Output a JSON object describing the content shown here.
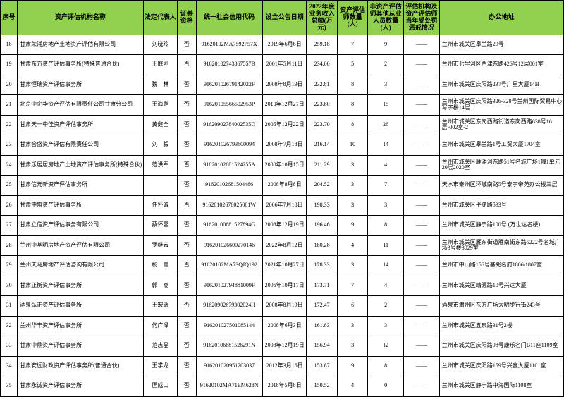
{
  "headers": [
    "序号",
    "资产评估机构名称",
    "法定代表人",
    "证券资格",
    "统一社会信用代码",
    "设立公告日期",
    "2022年度业务收入总额(万元)",
    "资产评估师数量(人)",
    "非资产评估师其他从业人员数量(人)",
    "评估机构及资产评估师当年受处罚惩戒情况",
    "办公地址"
  ],
  "rows": [
    {
      "seq": "18",
      "name": "甘肃荣浦房地产土地资产评估有限公司",
      "rep": "刘晓玲",
      "sec": "否",
      "code": "91620102MA7592P57X",
      "date": "2019年6月6日",
      "rev": "259.18",
      "cpa": "7",
      "other": "9",
      "pen": "——",
      "addr": "兰州市城关区皋兰路29号"
    },
    {
      "seq": "19",
      "name": "甘肃东方资产评估事务所(特殊普通合伙)",
      "rep": "王庭刚",
      "sec": "否",
      "code": "91620102743867557B",
      "date": "2001年5月11日",
      "rev": "234.00",
      "cpa": "5",
      "other": "2",
      "pen": "——",
      "addr": "兰州市七里河区西津东路426号12层001室"
    },
    {
      "seq": "20",
      "name": "甘肃恒瑞资产评估事务所",
      "rep": "魏　林",
      "sec": "否",
      "code": "91620102679142022F",
      "date": "2008年8月19日",
      "rev": "232.81",
      "cpa": "8",
      "other": "3",
      "pen": "——",
      "addr": "兰州市城关区庆阳路237号广星大厦14H"
    },
    {
      "seq": "21",
      "name": "北京中企华资产评估有限责任公司甘肃分公司",
      "rep": "王海鹏",
      "sec": "否",
      "code": "91620105566502953P",
      "date": "2010年12月27日",
      "rev": "223.80",
      "cpa": "8",
      "other": "15",
      "pen": "——",
      "addr": "兰州市城关区庆阳路326-328号兰州国际贸易中心写字楼14层"
    },
    {
      "seq": "22",
      "name": "甘肃天一中佳资产评估事务所",
      "rep": "黄健全",
      "sec": "否",
      "code": "91620902784002535D",
      "date": "2005年12月22日",
      "rev": "223.70",
      "cpa": "8",
      "other": "26",
      "pen": "——",
      "addr": "兰州市城关区东岗西路街道东岗西路638号16层-002室-2"
    },
    {
      "seq": "23",
      "name": "甘肃合盛资产评估有限责任公司",
      "rep": "刘　毅",
      "sec": "否",
      "code": "916201026793600094",
      "date": "2008年7月18日",
      "rev": "216.14",
      "cpa": "10",
      "other": "14",
      "pen": "——",
      "addr": "兰州市城关区皋兰路1号工贸大厦1704室"
    },
    {
      "seq": "24",
      "name": "甘肃乐居居房地产土地资产评估事务所(特殊合伙)",
      "rep": "范洪军",
      "sec": "否",
      "code": "91620102681524255A",
      "date": "2008年10月15日",
      "rev": "211.29",
      "cpa": "3",
      "other": "4",
      "pen": "——",
      "addr": "兰州市城关区雁滩河东路51号名城广场1幢1单元20层2020室"
    },
    {
      "seq": "25",
      "name": "甘肃信元新资产评估事务所",
      "rep": "",
      "sec": "否",
      "code": "91620102681504486",
      "date": "2008年8月8日",
      "rev": "204.52",
      "cpa": "3",
      "other": "7",
      "pen": "——",
      "addr": "天水市秦州区环城南路5号泰宇帝苑办公楼三层"
    },
    {
      "seq": "26",
      "name": "甘肃中盛资产评估事务所",
      "rep": "任怀诚",
      "sec": "否",
      "code": "91620102678025001W",
      "date": "2006年7月18日",
      "rev": "198.33",
      "cpa": "3",
      "other": "3",
      "pen": "——",
      "addr": "兰州市城关区平凉路533号"
    },
    {
      "seq": "27",
      "name": "甘肃立信资产评估事务有限公司",
      "rep": "蔡怀嘉",
      "sec": "否",
      "code": "91620100681527894G",
      "date": "2008年12月19日",
      "rev": "196.46",
      "cpa": "9",
      "other": "8",
      "pen": "——",
      "addr": "兰州市城关区静宁路100号 (万世达名楼)"
    },
    {
      "seq": "28",
      "name": "兰州中基明房地产资产评估有限公司",
      "rep": "罗继云",
      "sec": "否",
      "code": "916201026600270146",
      "date": "2022年8月12日",
      "rev": "180.28",
      "cpa": "4",
      "other": "11",
      "pen": "——",
      "addr": "兰州市城关区雁东街道雁南街东路5222号名城广场3号楼3029室"
    },
    {
      "seq": "29",
      "name": "兰州天马房地产评估咨询有限公司",
      "rep": "杨　嵩",
      "sec": "否",
      "code": "91620102MA73QJQ192",
      "date": "2021年10月27日",
      "rev": "178.33",
      "cpa": "3",
      "other": "14",
      "pen": "——",
      "addr": "兰州市中山路156号基兆名府1806/1807室"
    },
    {
      "seq": "30",
      "name": "甘肃正衡资产评估事务所",
      "rep": "郭　嵩",
      "sec": "否",
      "code": "91620102794881009F",
      "date": "2006年10月17日",
      "rev": "173.71",
      "cpa": "7",
      "other": "4",
      "pen": "——",
      "addr": "兰州市城关区靖源路10号兴达大厦"
    },
    {
      "seq": "31",
      "name": "酒泉弘正资产评估事务所",
      "rep": "王宏瑞",
      "sec": "否",
      "code": "91620902679302024H",
      "date": "2008年8月19日",
      "rev": "172.47",
      "cpa": "6",
      "other": "2",
      "pen": "——",
      "addr": "酒泉市肃州区东方广场大明步行街243号"
    },
    {
      "seq": "32",
      "name": "兰州华丰资产评估事务所",
      "rep": "何广泽",
      "sec": "否",
      "code": "916201027501085144",
      "date": "2008年6月3日",
      "rev": "161.83",
      "cpa": "3",
      "other": "3",
      "pen": "——",
      "addr": "兰州市城关区五泉路31号2楼"
    },
    {
      "seq": "33",
      "name": "甘肃中鼎资产评估事务所",
      "rep": "范志晶",
      "sec": "否",
      "code": "91620106681526291N",
      "date": "2008年12月19日",
      "rev": "156.94",
      "cpa": "3",
      "other": "12",
      "pen": "——",
      "addr": "兰州市城关区庆阳路98号康乐名门B11座1109室"
    },
    {
      "seq": "34",
      "name": "甘肃安远财政资产评估事务所(普通合伙)",
      "rep": "王学龙",
      "sec": "否",
      "code": "916201020951203037",
      "date": "2012年3月16日",
      "rev": "153.87",
      "cpa": "9",
      "other": "8",
      "pen": "——",
      "addr": "兰州市城关区庆阳路159号兴鑫大厦1101室"
    },
    {
      "seq": "35",
      "name": "甘肃永诚资产评估事务所",
      "rep": "匡成山",
      "sec": "否",
      "code": "91620102MA71EM628N",
      "date": "2018年5月8日",
      "rev": "150.52",
      "cpa": "4",
      "other": "0",
      "pen": "——",
      "addr": "兰州市城关区静宁路中海国际1108室"
    }
  ]
}
